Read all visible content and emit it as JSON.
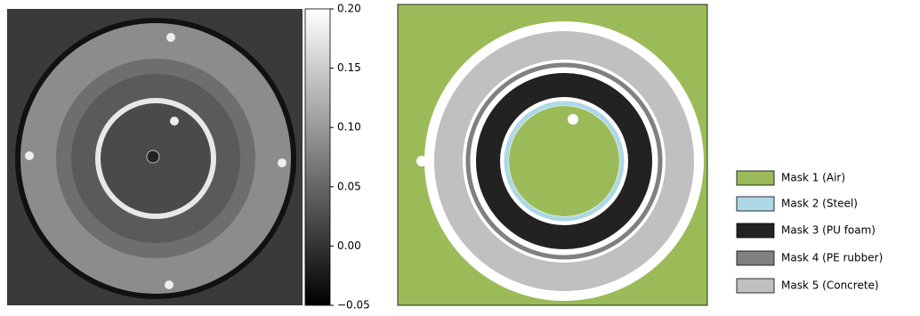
{
  "colorbar": {
    "lim": [
      -0.05,
      0.2
    ],
    "ticks": [
      {
        "value": -0.05,
        "label": "−0.05"
      },
      {
        "value": 0,
        "label": "0.00"
      },
      0.05,
      {
        "value": 0.1,
        "label": "0.10"
      },
      0.15,
      {
        "value": 0.2,
        "label": "0.20"
      }
    ]
  },
  "legend": {
    "items": [
      {
        "label": "Mask 1 (Air)",
        "color": "#9bbb59"
      },
      {
        "label": "Mask 2 (Steel)",
        "color": "#add8e6"
      },
      {
        "label": "Mask 3 (PU foam)",
        "color": "#222222"
      },
      {
        "label": "Mask 4 (PE rubber)",
        "color": "#808080"
      },
      {
        "label": "Mask 5 (Concrete)",
        "color": "#c0c0c0"
      }
    ]
  }
}
